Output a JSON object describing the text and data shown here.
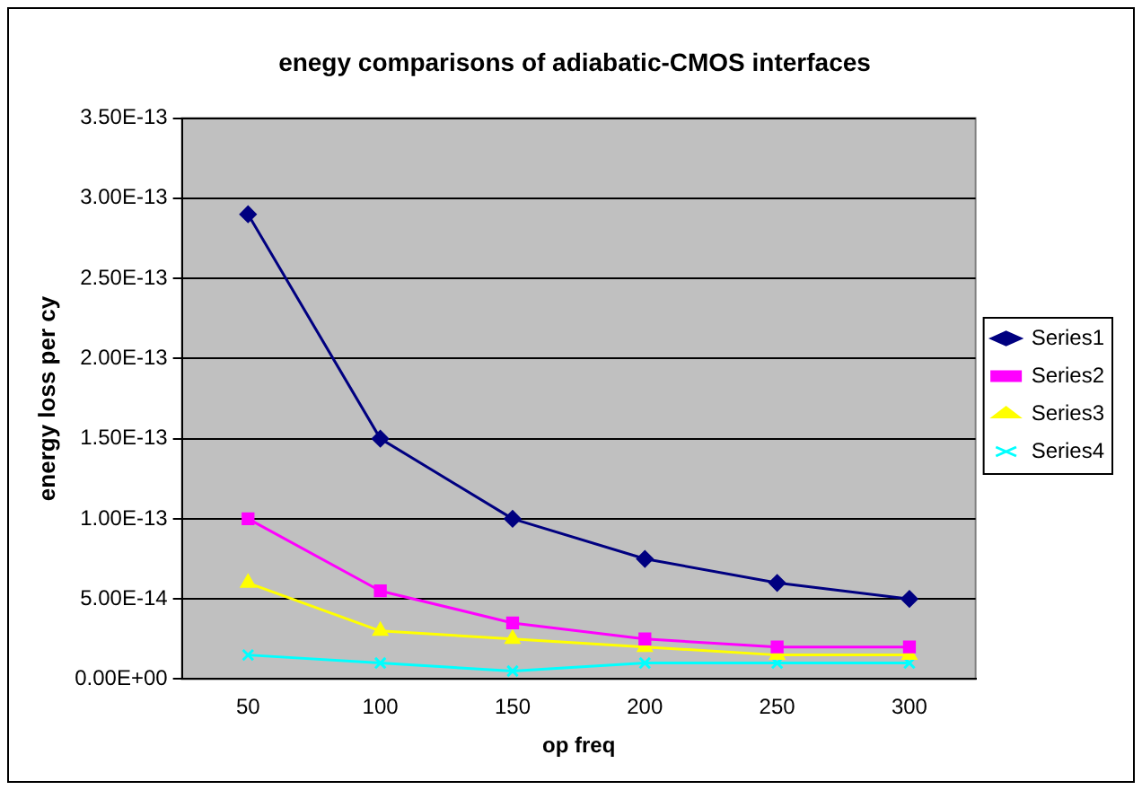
{
  "chart_data": {
    "type": "line",
    "title": "enegy comparisons of adiabatic-CMOS interfaces",
    "xlabel": "op freq",
    "ylabel": "energy loss per cy",
    "categories": [
      "50",
      "100",
      "150",
      "200",
      "250",
      "300"
    ],
    "series": [
      {
        "name": "Series1",
        "color": "#000080",
        "marker": "diamond",
        "values": [
          2.9e-13,
          1.5e-13,
          1e-13,
          7.5e-14,
          6e-14,
          5e-14
        ]
      },
      {
        "name": "Series2",
        "color": "#ff00ff",
        "marker": "square",
        "values": [
          1e-13,
          5.5e-14,
          3.5e-14,
          2.5e-14,
          2e-14,
          2e-14
        ]
      },
      {
        "name": "Series3",
        "color": "#ffff00",
        "marker": "triangle",
        "values": [
          6e-14,
          3e-14,
          2.5e-14,
          2e-14,
          1.5e-14,
          1.5e-14
        ]
      },
      {
        "name": "Series4",
        "color": "#00ffff",
        "marker": "cross",
        "values": [
          1.5e-14,
          1e-14,
          5e-15,
          1e-14,
          1e-14,
          1e-14
        ]
      }
    ],
    "ylim": [
      0,
      3.5e-13
    ],
    "yticks": [
      {
        "value": 0,
        "label": "0.00E+00"
      },
      {
        "value": 5e-14,
        "label": "5.00E-14"
      },
      {
        "value": 1e-13,
        "label": "1.00E-13"
      },
      {
        "value": 1.5e-13,
        "label": "1.50E-13"
      },
      {
        "value": 2e-13,
        "label": "2.00E-13"
      },
      {
        "value": 2.5e-13,
        "label": "2.50E-13"
      },
      {
        "value": 3e-13,
        "label": "3.00E-13"
      },
      {
        "value": 3.5e-13,
        "label": "3.50E-13"
      }
    ],
    "grid": "y",
    "legend": "right"
  }
}
